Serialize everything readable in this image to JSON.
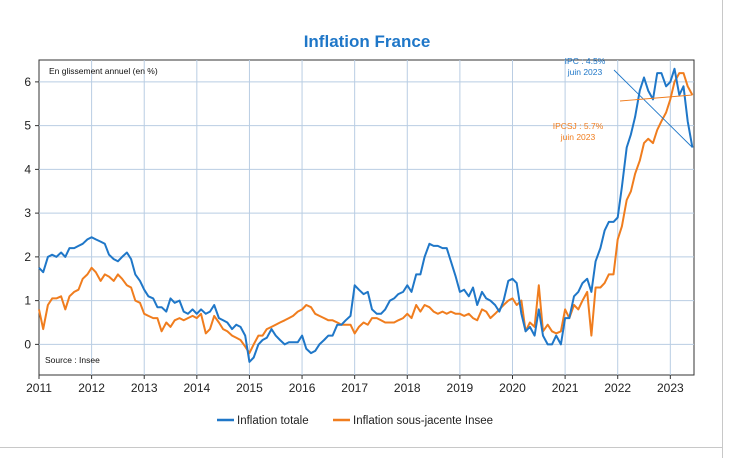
{
  "chart_data": {
    "type": "line",
    "title": "Inflation France",
    "subtitle": "En glissement annuel (en %)",
    "source": "Source : Insee",
    "xlim": [
      2011,
      2023.45
    ],
    "ylim": [
      -0.7,
      6.5
    ],
    "x_ticks": [
      "2011",
      "2012",
      "2013",
      "2014",
      "2015",
      "2016",
      "2017",
      "2018",
      "2019",
      "2020",
      "2021",
      "2022",
      "2023"
    ],
    "y_ticks": [
      "0",
      "1",
      "2",
      "3",
      "4",
      "5",
      "6"
    ],
    "grid": true,
    "legend_position": "bottom",
    "series": [
      {
        "name": "Inflation totale",
        "color": "#1f77c8",
        "points": [
          [
            2011.0,
            1.75
          ],
          [
            2011.08,
            1.65
          ],
          [
            2011.17,
            2.0
          ],
          [
            2011.25,
            2.05
          ],
          [
            2011.33,
            2.0
          ],
          [
            2011.42,
            2.1
          ],
          [
            2011.5,
            2.0
          ],
          [
            2011.58,
            2.2
          ],
          [
            2011.67,
            2.2
          ],
          [
            2011.75,
            2.25
          ],
          [
            2011.83,
            2.3
          ],
          [
            2011.92,
            2.4
          ],
          [
            2012.0,
            2.45
          ],
          [
            2012.08,
            2.4
          ],
          [
            2012.17,
            2.35
          ],
          [
            2012.25,
            2.3
          ],
          [
            2012.33,
            2.05
          ],
          [
            2012.42,
            1.95
          ],
          [
            2012.5,
            1.9
          ],
          [
            2012.58,
            2.0
          ],
          [
            2012.67,
            2.1
          ],
          [
            2012.75,
            1.95
          ],
          [
            2012.83,
            1.6
          ],
          [
            2012.92,
            1.45
          ],
          [
            2013.0,
            1.25
          ],
          [
            2013.08,
            1.1
          ],
          [
            2013.17,
            1.05
          ],
          [
            2013.25,
            0.85
          ],
          [
            2013.33,
            0.85
          ],
          [
            2013.42,
            0.75
          ],
          [
            2013.5,
            1.05
          ],
          [
            2013.58,
            0.95
          ],
          [
            2013.67,
            1.0
          ],
          [
            2013.75,
            0.75
          ],
          [
            2013.83,
            0.7
          ],
          [
            2013.92,
            0.8
          ],
          [
            2014.0,
            0.7
          ],
          [
            2014.08,
            0.8
          ],
          [
            2014.17,
            0.7
          ],
          [
            2014.25,
            0.75
          ],
          [
            2014.33,
            0.9
          ],
          [
            2014.42,
            0.6
          ],
          [
            2014.5,
            0.55
          ],
          [
            2014.58,
            0.5
          ],
          [
            2014.67,
            0.35
          ],
          [
            2014.75,
            0.45
          ],
          [
            2014.83,
            0.4
          ],
          [
            2014.92,
            0.2
          ],
          [
            2015.0,
            -0.4
          ],
          [
            2015.08,
            -0.3
          ],
          [
            2015.17,
            0.0
          ],
          [
            2015.25,
            0.1
          ],
          [
            2015.33,
            0.15
          ],
          [
            2015.42,
            0.35
          ],
          [
            2015.5,
            0.2
          ],
          [
            2015.58,
            0.1
          ],
          [
            2015.67,
            0.0
          ],
          [
            2015.75,
            0.05
          ],
          [
            2015.83,
            0.05
          ],
          [
            2015.92,
            0.05
          ],
          [
            2016.0,
            0.2
          ],
          [
            2016.08,
            -0.1
          ],
          [
            2016.17,
            -0.2
          ],
          [
            2016.25,
            -0.15
          ],
          [
            2016.33,
            0.0
          ],
          [
            2016.42,
            0.1
          ],
          [
            2016.5,
            0.2
          ],
          [
            2016.58,
            0.2
          ],
          [
            2016.67,
            0.45
          ],
          [
            2016.75,
            0.45
          ],
          [
            2016.83,
            0.55
          ],
          [
            2016.92,
            0.65
          ],
          [
            2017.0,
            1.35
          ],
          [
            2017.08,
            1.25
          ],
          [
            2017.17,
            1.15
          ],
          [
            2017.25,
            1.2
          ],
          [
            2017.33,
            0.8
          ],
          [
            2017.42,
            0.7
          ],
          [
            2017.5,
            0.7
          ],
          [
            2017.58,
            0.8
          ],
          [
            2017.67,
            1.0
          ],
          [
            2017.75,
            1.05
          ],
          [
            2017.83,
            1.15
          ],
          [
            2017.92,
            1.2
          ],
          [
            2018.0,
            1.35
          ],
          [
            2018.08,
            1.2
          ],
          [
            2018.17,
            1.6
          ],
          [
            2018.25,
            1.6
          ],
          [
            2018.33,
            2.0
          ],
          [
            2018.42,
            2.3
          ],
          [
            2018.5,
            2.25
          ],
          [
            2018.58,
            2.25
          ],
          [
            2018.67,
            2.2
          ],
          [
            2018.75,
            2.2
          ],
          [
            2018.83,
            1.9
          ],
          [
            2018.92,
            1.55
          ],
          [
            2019.0,
            1.2
          ],
          [
            2019.08,
            1.25
          ],
          [
            2019.17,
            1.1
          ],
          [
            2019.25,
            1.3
          ],
          [
            2019.33,
            0.9
          ],
          [
            2019.42,
            1.2
          ],
          [
            2019.5,
            1.05
          ],
          [
            2019.58,
            1.0
          ],
          [
            2019.67,
            0.9
          ],
          [
            2019.75,
            0.75
          ],
          [
            2019.83,
            1.0
          ],
          [
            2019.92,
            1.45
          ],
          [
            2020.0,
            1.5
          ],
          [
            2020.08,
            1.4
          ],
          [
            2020.17,
            0.7
          ],
          [
            2020.25,
            0.3
          ],
          [
            2020.33,
            0.4
          ],
          [
            2020.42,
            0.2
          ],
          [
            2020.5,
            0.8
          ],
          [
            2020.58,
            0.2
          ],
          [
            2020.67,
            0.0
          ],
          [
            2020.75,
            0.0
          ],
          [
            2020.83,
            0.2
          ],
          [
            2020.92,
            0.0
          ],
          [
            2021.0,
            0.6
          ],
          [
            2021.08,
            0.6
          ],
          [
            2021.17,
            1.1
          ],
          [
            2021.25,
            1.2
          ],
          [
            2021.33,
            1.4
          ],
          [
            2021.42,
            1.5
          ],
          [
            2021.5,
            1.2
          ],
          [
            2021.58,
            1.9
          ],
          [
            2021.67,
            2.2
          ],
          [
            2021.75,
            2.6
          ],
          [
            2021.83,
            2.8
          ],
          [
            2021.92,
            2.8
          ],
          [
            2022.0,
            2.9
          ],
          [
            2022.08,
            3.6
          ],
          [
            2022.17,
            4.5
          ],
          [
            2022.25,
            4.8
          ],
          [
            2022.33,
            5.2
          ],
          [
            2022.42,
            5.8
          ],
          [
            2022.5,
            6.1
          ],
          [
            2022.58,
            5.8
          ],
          [
            2022.67,
            5.6
          ],
          [
            2022.75,
            6.2
          ],
          [
            2022.83,
            6.2
          ],
          [
            2022.92,
            5.9
          ],
          [
            2023.0,
            6.0
          ],
          [
            2023.08,
            6.3
          ],
          [
            2023.17,
            5.7
          ],
          [
            2023.25,
            5.9
          ],
          [
            2023.33,
            5.1
          ],
          [
            2023.42,
            4.5
          ]
        ]
      },
      {
        "name": "Inflation sous-jacente Insee",
        "color": "#f07d1e",
        "points": [
          [
            2011.0,
            0.8
          ],
          [
            2011.08,
            0.35
          ],
          [
            2011.17,
            0.9
          ],
          [
            2011.25,
            1.05
          ],
          [
            2011.33,
            1.05
          ],
          [
            2011.42,
            1.1
          ],
          [
            2011.5,
            0.8
          ],
          [
            2011.58,
            1.1
          ],
          [
            2011.67,
            1.2
          ],
          [
            2011.75,
            1.25
          ],
          [
            2011.83,
            1.5
          ],
          [
            2011.92,
            1.6
          ],
          [
            2012.0,
            1.75
          ],
          [
            2012.08,
            1.65
          ],
          [
            2012.17,
            1.45
          ],
          [
            2012.25,
            1.6
          ],
          [
            2012.33,
            1.55
          ],
          [
            2012.42,
            1.45
          ],
          [
            2012.5,
            1.6
          ],
          [
            2012.58,
            1.5
          ],
          [
            2012.67,
            1.35
          ],
          [
            2012.75,
            1.3
          ],
          [
            2012.83,
            1.0
          ],
          [
            2012.92,
            0.95
          ],
          [
            2013.0,
            0.7
          ],
          [
            2013.08,
            0.65
          ],
          [
            2013.17,
            0.6
          ],
          [
            2013.25,
            0.6
          ],
          [
            2013.33,
            0.3
          ],
          [
            2013.42,
            0.5
          ],
          [
            2013.5,
            0.4
          ],
          [
            2013.58,
            0.55
          ],
          [
            2013.67,
            0.6
          ],
          [
            2013.75,
            0.55
          ],
          [
            2013.83,
            0.6
          ],
          [
            2013.92,
            0.65
          ],
          [
            2014.0,
            0.6
          ],
          [
            2014.08,
            0.7
          ],
          [
            2014.17,
            0.25
          ],
          [
            2014.25,
            0.35
          ],
          [
            2014.33,
            0.65
          ],
          [
            2014.42,
            0.5
          ],
          [
            2014.5,
            0.35
          ],
          [
            2014.58,
            0.3
          ],
          [
            2014.67,
            0.2
          ],
          [
            2014.75,
            0.15
          ],
          [
            2014.83,
            0.1
          ],
          [
            2014.92,
            -0.05
          ],
          [
            2015.0,
            -0.2
          ],
          [
            2015.08,
            0.0
          ],
          [
            2015.17,
            0.2
          ],
          [
            2015.25,
            0.2
          ],
          [
            2015.33,
            0.35
          ],
          [
            2015.42,
            0.4
          ],
          [
            2015.5,
            0.45
          ],
          [
            2015.58,
            0.5
          ],
          [
            2015.67,
            0.55
          ],
          [
            2015.75,
            0.6
          ],
          [
            2015.83,
            0.65
          ],
          [
            2015.92,
            0.75
          ],
          [
            2016.0,
            0.8
          ],
          [
            2016.08,
            0.9
          ],
          [
            2016.17,
            0.85
          ],
          [
            2016.25,
            0.7
          ],
          [
            2016.33,
            0.65
          ],
          [
            2016.42,
            0.6
          ],
          [
            2016.5,
            0.55
          ],
          [
            2016.58,
            0.55
          ],
          [
            2016.67,
            0.5
          ],
          [
            2016.75,
            0.45
          ],
          [
            2016.83,
            0.45
          ],
          [
            2016.92,
            0.45
          ],
          [
            2017.0,
            0.25
          ],
          [
            2017.08,
            0.4
          ],
          [
            2017.17,
            0.5
          ],
          [
            2017.25,
            0.45
          ],
          [
            2017.33,
            0.6
          ],
          [
            2017.42,
            0.6
          ],
          [
            2017.5,
            0.55
          ],
          [
            2017.58,
            0.5
          ],
          [
            2017.67,
            0.5
          ],
          [
            2017.75,
            0.5
          ],
          [
            2017.83,
            0.55
          ],
          [
            2017.92,
            0.6
          ],
          [
            2018.0,
            0.7
          ],
          [
            2018.08,
            0.6
          ],
          [
            2018.17,
            0.9
          ],
          [
            2018.25,
            0.75
          ],
          [
            2018.33,
            0.9
          ],
          [
            2018.42,
            0.85
          ],
          [
            2018.5,
            0.75
          ],
          [
            2018.58,
            0.7
          ],
          [
            2018.67,
            0.75
          ],
          [
            2018.75,
            0.7
          ],
          [
            2018.83,
            0.75
          ],
          [
            2018.92,
            0.7
          ],
          [
            2019.0,
            0.7
          ],
          [
            2019.08,
            0.65
          ],
          [
            2019.17,
            0.7
          ],
          [
            2019.25,
            0.6
          ],
          [
            2019.33,
            0.55
          ],
          [
            2019.42,
            0.8
          ],
          [
            2019.5,
            0.75
          ],
          [
            2019.58,
            0.6
          ],
          [
            2019.67,
            0.7
          ],
          [
            2019.75,
            0.8
          ],
          [
            2019.83,
            0.9
          ],
          [
            2019.92,
            1.0
          ],
          [
            2020.0,
            1.05
          ],
          [
            2020.08,
            0.9
          ],
          [
            2020.17,
            1.0
          ],
          [
            2020.25,
            0.3
          ],
          [
            2020.33,
            0.5
          ],
          [
            2020.42,
            0.4
          ],
          [
            2020.5,
            1.35
          ],
          [
            2020.58,
            0.3
          ],
          [
            2020.67,
            0.45
          ],
          [
            2020.75,
            0.3
          ],
          [
            2020.83,
            0.25
          ],
          [
            2020.92,
            0.3
          ],
          [
            2021.0,
            0.8
          ],
          [
            2021.08,
            0.6
          ],
          [
            2021.17,
            0.9
          ],
          [
            2021.25,
            0.8
          ],
          [
            2021.33,
            1.0
          ],
          [
            2021.42,
            1.2
          ],
          [
            2021.5,
            0.2
          ],
          [
            2021.58,
            1.3
          ],
          [
            2021.67,
            1.3
          ],
          [
            2021.75,
            1.4
          ],
          [
            2021.83,
            1.6
          ],
          [
            2021.92,
            1.6
          ],
          [
            2022.0,
            2.4
          ],
          [
            2022.08,
            2.7
          ],
          [
            2022.17,
            3.3
          ],
          [
            2022.25,
            3.5
          ],
          [
            2022.33,
            3.9
          ],
          [
            2022.42,
            4.2
          ],
          [
            2022.5,
            4.6
          ],
          [
            2022.58,
            4.7
          ],
          [
            2022.67,
            4.6
          ],
          [
            2022.75,
            4.9
          ],
          [
            2022.83,
            5.1
          ],
          [
            2022.92,
            5.3
          ],
          [
            2023.0,
            5.6
          ],
          [
            2023.08,
            6.0
          ],
          [
            2023.17,
            6.2
          ],
          [
            2023.25,
            6.2
          ],
          [
            2023.33,
            5.9
          ],
          [
            2023.42,
            5.7
          ]
        ]
      }
    ],
    "annotations": [
      {
        "series": 0,
        "text_lines": [
          "IPC : 4.5%",
          "juin 2023"
        ],
        "value": 4.5
      },
      {
        "series": 1,
        "text_lines": [
          "IPCSJ : 5.7%",
          "juin 2023"
        ],
        "value": 5.7
      }
    ]
  }
}
